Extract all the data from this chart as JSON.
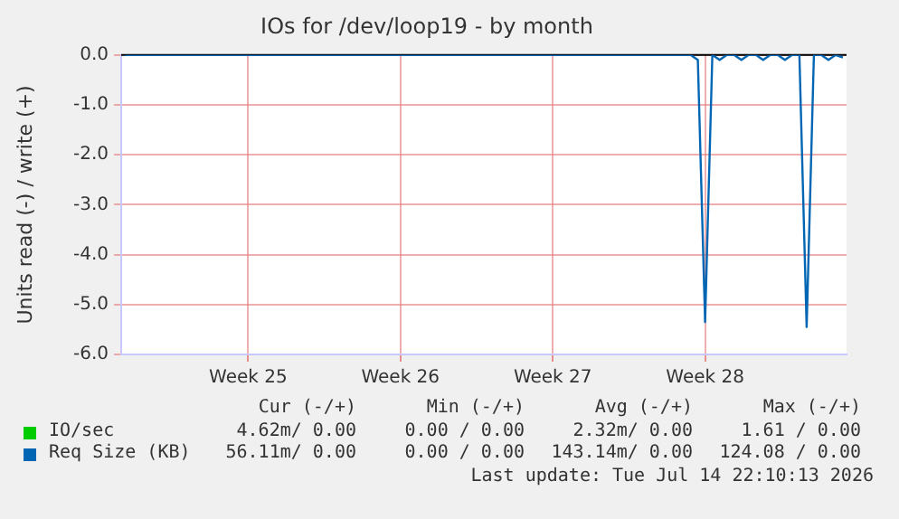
{
  "chart_data": {
    "type": "line",
    "title": "IOs for /dev/loop19 - by month",
    "ylabel": "Units read (-) / write (+)",
    "categories": [
      null,
      null,
      null,
      null,
      null,
      null,
      null,
      null,
      null,
      null,
      null,
      null,
      null,
      null,
      null,
      null,
      null,
      "Week 25",
      null,
      null,
      null,
      null,
      null,
      null,
      null,
      null,
      null,
      null,
      null,
      null,
      null,
      null,
      null,
      null,
      null,
      null,
      null,
      null,
      "Week 26",
      null,
      null,
      null,
      null,
      null,
      null,
      null,
      null,
      null,
      null,
      null,
      null,
      null,
      null,
      null,
      null,
      null,
      null,
      null,
      null,
      "Week 27",
      null,
      null,
      null,
      null,
      null,
      null,
      null,
      null,
      null,
      null,
      null,
      null,
      null,
      null,
      null,
      null,
      null,
      null,
      null,
      null,
      "Week 28",
      null,
      null,
      null,
      null,
      null,
      null,
      null,
      null,
      null,
      null,
      null,
      null,
      null,
      null,
      null,
      null,
      null,
      null,
      null
    ],
    "ylim": [
      -6,
      0
    ],
    "yticks": [
      {
        "value": -6,
        "label": "-6.0"
      },
      {
        "value": -5,
        "label": "-5.0"
      },
      {
        "value": -4,
        "label": "-4.0"
      },
      {
        "value": -3,
        "label": "-3.0"
      },
      {
        "value": -2,
        "label": "-2.0"
      },
      {
        "value": -1,
        "label": "-1.0"
      },
      {
        "value": 0,
        "label": "0.0"
      }
    ],
    "grid": true,
    "legend": "bottom left",
    "marker": "none",
    "line_style": "solid",
    "series": [
      {
        "name": "IO/sec",
        "color": "#00cc00",
        "values": [
          null,
          null,
          null,
          null,
          null,
          null,
          null,
          null,
          null,
          null,
          null,
          null,
          null,
          null,
          null,
          null,
          null,
          null,
          null,
          null,
          null,
          null,
          null,
          null,
          null,
          null,
          null,
          null,
          null,
          null,
          null,
          null,
          null,
          null,
          null,
          null,
          null,
          null,
          null,
          null,
          null,
          null,
          null,
          null,
          null,
          null,
          null,
          null,
          null,
          null,
          null,
          null,
          null,
          null,
          null,
          null,
          null,
          null,
          null,
          null,
          null,
          null,
          null,
          null,
          null,
          null,
          null,
          null,
          null,
          null,
          null,
          null,
          null,
          null,
          null,
          null,
          null,
          null,
          null,
          null,
          null,
          null,
          null,
          null,
          null,
          null,
          null,
          null,
          null,
          null,
          null,
          null,
          null,
          null,
          null,
          null,
          null,
          null,
          null,
          null
        ]
      },
      {
        "name": "Req Size (KB)",
        "color": "#0066b3",
        "values": [
          0,
          0,
          0,
          0,
          0,
          0,
          0,
          0,
          0,
          0,
          0,
          0,
          0,
          0,
          0,
          0,
          0,
          0,
          0,
          0,
          0,
          0,
          0,
          0,
          0,
          0,
          0,
          0,
          0,
          0,
          0,
          0,
          0,
          0,
          0,
          0,
          0,
          0,
          0,
          0,
          0,
          0,
          0,
          0,
          0,
          0,
          0,
          0,
          0,
          0,
          0,
          0,
          0,
          0,
          0,
          0,
          0,
          0,
          0,
          0,
          0,
          0,
          0,
          0,
          0,
          0,
          0,
          0,
          0,
          0,
          0,
          0,
          0,
          0,
          0,
          0,
          0,
          0,
          0,
          -0.1,
          -5.35,
          0,
          -0.1,
          0,
          0,
          -0.1,
          0,
          0,
          -0.1,
          0,
          0,
          -0.1,
          0,
          0,
          -5.45,
          0,
          0,
          -0.1,
          0,
          -0.05
        ]
      }
    ],
    "ref_lines": [
      {
        "axis": "y",
        "value": 0,
        "color": "#000000"
      }
    ],
    "annotations": [
      "Cur (-/+)",
      "Min (-/+)",
      "Avg (-/+)",
      "Max (-/+)",
      "4.62m/ 0.00",
      "0.00 / 0.00",
      "2.32m/ 0.00",
      "1.61 / 0.00",
      "56.11m/ 0.00",
      "0.00 / 0.00",
      "143.14m/ 0.00",
      "124.08 / 0.00",
      "Last update: Tue Jul 14 22:10:13 2026"
    ]
  }
}
